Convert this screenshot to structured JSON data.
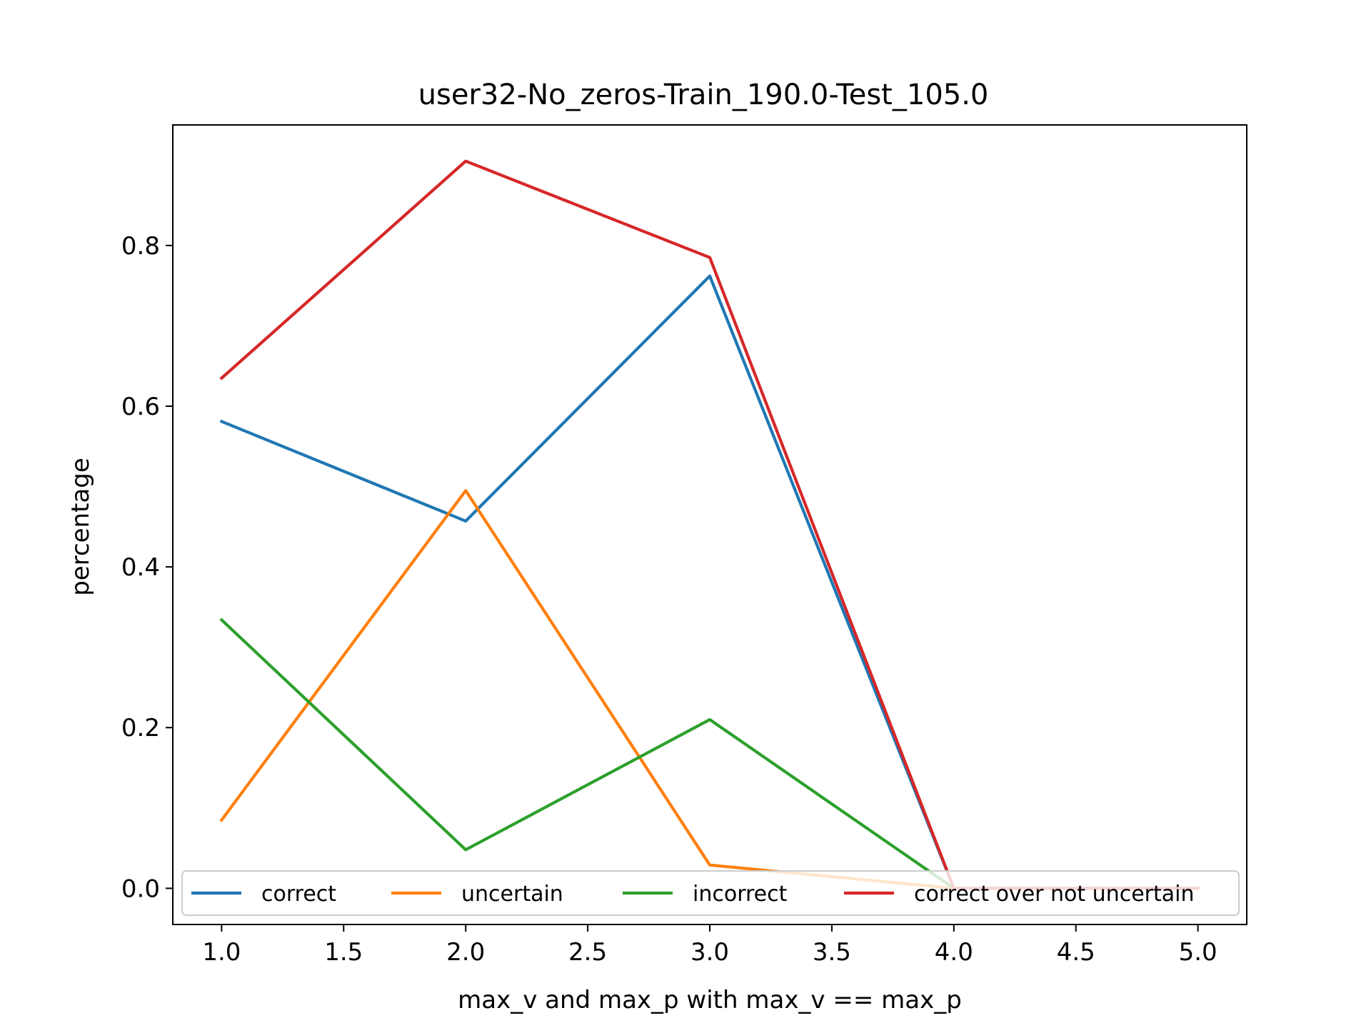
{
  "chart_data": {
    "type": "line",
    "title": "user32-No_zeros-Train_190.0-Test_105.0",
    "xlabel": "max_v and max_p with max_v == max_p",
    "ylabel": "percentage",
    "xlim": [
      0.8,
      5.2
    ],
    "ylim": [
      -0.045,
      0.95
    ],
    "xticks": [
      1.0,
      1.5,
      2.0,
      2.5,
      3.0,
      3.5,
      4.0,
      4.5,
      5.0
    ],
    "xtick_labels": [
      "1.0",
      "1.5",
      "2.0",
      "2.5",
      "3.0",
      "3.5",
      "4.0",
      "4.5",
      "5.0"
    ],
    "yticks": [
      0.0,
      0.2,
      0.4,
      0.6,
      0.8
    ],
    "ytick_labels": [
      "0.0",
      "0.2",
      "0.4",
      "0.6",
      "0.8"
    ],
    "grid": false,
    "legend_position": "lower center",
    "x": [
      1,
      2,
      3,
      4,
      5
    ],
    "series": [
      {
        "name": "correct",
        "color": "#1f77b4",
        "values": [
          0.581,
          0.457,
          0.762,
          0.0,
          0.0
        ]
      },
      {
        "name": "uncertain",
        "color": "#ff7f0e",
        "values": [
          0.085,
          0.495,
          0.029,
          0.0,
          0.0
        ]
      },
      {
        "name": "incorrect",
        "color": "#2ca02c",
        "values": [
          0.334,
          0.048,
          0.21,
          0.0,
          0.0
        ]
      },
      {
        "name": "correct over not uncertain",
        "color": "#d62728",
        "values": [
          0.635,
          0.905,
          0.785,
          0.0,
          0.0
        ]
      }
    ]
  }
}
